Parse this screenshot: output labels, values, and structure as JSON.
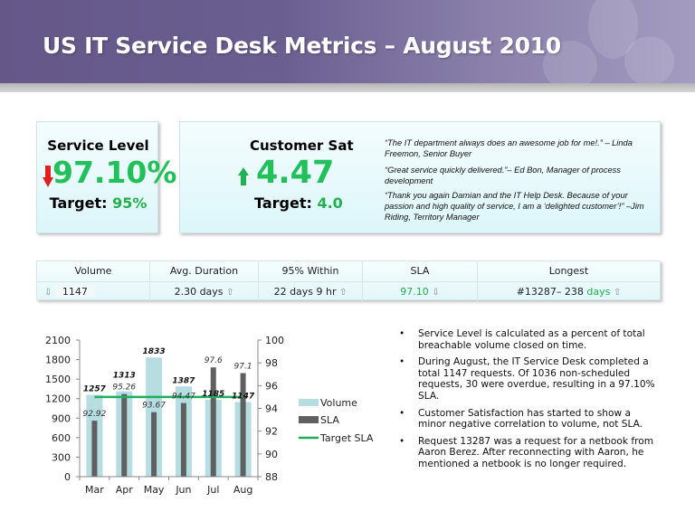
{
  "header": {
    "title": "US IT Service Desk Metrics – August 2010"
  },
  "service_level": {
    "label": "Service Level",
    "value": "97.10%",
    "trend": "down",
    "target_label": "Target:",
    "target_value": "95%"
  },
  "customer_sat": {
    "label": "Customer Sat",
    "value": "4.47",
    "trend": "up",
    "target_label": "Target:",
    "target_value": "4.0"
  },
  "quotes": [
    "“The IT department always does an awesome job for me!.” – Linda Freemon, Senior Buyer",
    "“Great service quickly delivered.”– Ed Bon, Manager of process development",
    "“Thank you again Damian and the IT Help Desk.  Because of your passion and high quality of service, I am a ‘delighted customer’!” –Jim Riding, Territory Manager"
  ],
  "metrics": {
    "headers": [
      "Volume",
      "Avg. Duration",
      "95% Within",
      "SLA",
      "Longest"
    ],
    "volume": {
      "arrow": "⇩",
      "value": "1147"
    },
    "avg_duration": {
      "value": "2.30 days",
      "arrow": "⇧"
    },
    "within95": {
      "value": "22 days 9 hr",
      "arrow": "⇧"
    },
    "sla": {
      "value": "97.10",
      "arrow": "⇩"
    },
    "longest": {
      "value": "#13287– 238",
      "unit": "days",
      "arrow": "⇧"
    }
  },
  "colors": {
    "green": "#22c05a",
    "red": "#e02020",
    "volume_bar": "#b5dde2",
    "sla_bar": "#606060",
    "target_line": "#1fae5a",
    "header": "#655889"
  },
  "chart_data": {
    "type": "bar",
    "categories": [
      "Mar",
      "Apr",
      "May",
      "Jun",
      "Jul",
      "Aug"
    ],
    "series": [
      {
        "name": "Volume",
        "type": "bar",
        "axis": "left",
        "values": [
          1257,
          1313,
          1833,
          1387,
          1185,
          1147
        ],
        "labels": [
          "1257",
          "1313",
          "1833",
          "1387",
          "1185",
          "1147"
        ]
      },
      {
        "name": "SLA",
        "type": "bar",
        "axis": "right",
        "values": [
          92.92,
          95.26,
          93.67,
          94.47,
          97.6,
          97.1
        ],
        "labels": [
          "92.92",
          "95.26",
          "93.67",
          "94.47",
          "97.6",
          "97.1"
        ]
      },
      {
        "name": "Target SLA",
        "type": "line",
        "axis": "right",
        "values": [
          95,
          95,
          95,
          95,
          95,
          95
        ]
      }
    ],
    "left_axis": {
      "ylim": [
        0,
        2100
      ],
      "ticks": [
        "0",
        "300",
        "600",
        "900",
        "1200",
        "1500",
        "1800",
        "2100"
      ]
    },
    "right_axis": {
      "ylim": [
        88,
        100
      ],
      "ticks": [
        "88",
        "90",
        "92",
        "94",
        "96",
        "98",
        "100"
      ]
    },
    "legend": "right",
    "grid": false
  },
  "bullets": [
    "Service Level is calculated as a percent of total breachable volume closed on time.",
    "During August, the IT Service Desk completed a total 1147 requests.  Of 1036 non-scheduled requests, 30 were overdue, resulting in a 97.10% SLA.",
    "Customer Satisfaction has started to show a minor negative correlation to volume, not SLA.",
    "Request 13287 was a request for a netbook from Aaron Berez.  After reconnecting with Aaron, he mentioned a netbook is no longer required."
  ],
  "bullet_char": "•"
}
